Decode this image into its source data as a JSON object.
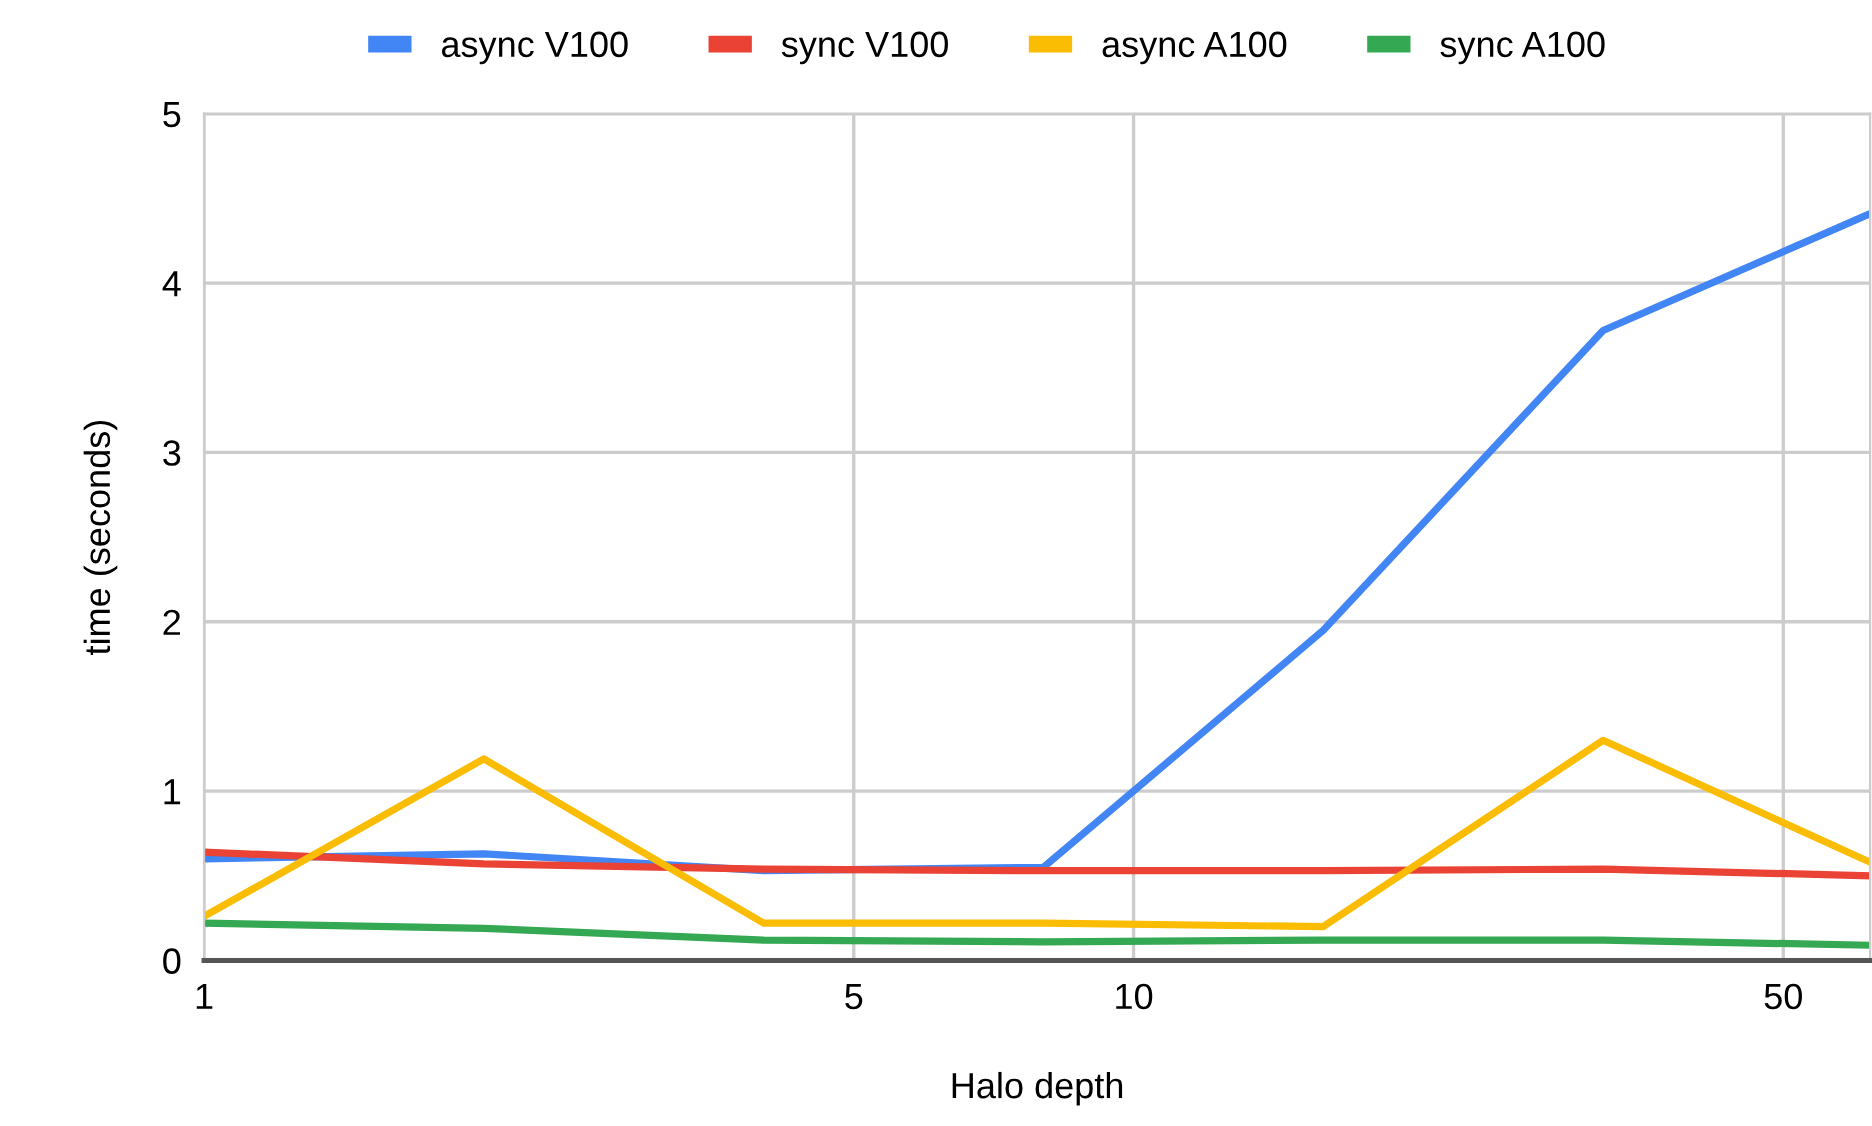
{
  "chart_data": {
    "type": "line",
    "xlabel": "Halo depth",
    "ylabel": "time (seconds)",
    "x": [
      1,
      2,
      4,
      8,
      16,
      32,
      62
    ],
    "series": [
      {
        "name": "async V100",
        "color": "#4285f4",
        "values": [
          0.6,
          0.63,
          0.53,
          0.55,
          1.95,
          3.72,
          4.41
        ]
      },
      {
        "name": "sync V100",
        "color": "#ea4335",
        "values": [
          0.64,
          0.57,
          0.54,
          0.53,
          0.53,
          0.54,
          0.5
        ]
      },
      {
        "name": "async A100",
        "color": "#fbbc04",
        "values": [
          0.26,
          1.19,
          0.22,
          0.22,
          0.2,
          1.3,
          0.58
        ]
      },
      {
        "name": "sync A100",
        "color": "#34a853",
        "values": [
          0.22,
          0.19,
          0.12,
          0.11,
          0.12,
          0.12,
          0.09
        ]
      }
    ],
    "log": "x",
    "xlim": [
      1,
      62
    ],
    "xticks": [
      1,
      5,
      10,
      50
    ],
    "ylim": [
      0,
      5
    ],
    "yticks": [
      0,
      1,
      2,
      3,
      4,
      5
    ],
    "grid": true,
    "legend": "top",
    "marker": "none",
    "line_style": "solid"
  }
}
